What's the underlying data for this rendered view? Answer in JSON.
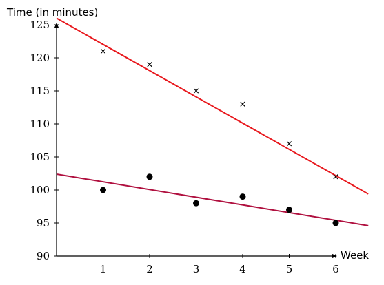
{
  "chart_data": {
    "type": "scatter",
    "ylabel": "Time (in minutes)",
    "xlabel": "Week",
    "xlim": [
      0,
      6
    ],
    "ylim": [
      90,
      125
    ],
    "x_ticks": [
      1,
      2,
      3,
      4,
      5,
      6
    ],
    "y_ticks": [
      90,
      95,
      100,
      105,
      110,
      115,
      120,
      125
    ],
    "grid": false,
    "series": [
      {
        "marker": "cross",
        "color": "#000000",
        "points": [
          {
            "x": 1,
            "y": 121
          },
          {
            "x": 2,
            "y": 119
          },
          {
            "x": 3,
            "y": 115
          },
          {
            "x": 4,
            "y": 113
          },
          {
            "x": 5,
            "y": 107
          },
          {
            "x": 6,
            "y": 102
          }
        ]
      },
      {
        "marker": "dot",
        "color": "#000000",
        "points": [
          {
            "x": 1,
            "y": 100
          },
          {
            "x": 2,
            "y": 102
          },
          {
            "x": 3,
            "y": 98
          },
          {
            "x": 4,
            "y": 99
          },
          {
            "x": 5,
            "y": 97
          },
          {
            "x": 6,
            "y": 95
          }
        ]
      }
    ],
    "trend_lines": [
      {
        "color": "#e8181d",
        "from": {
          "x": 0,
          "y": 126
        },
        "to": {
          "x": 6.7,
          "y": 99.4
        }
      },
      {
        "color": "#b0103f",
        "from": {
          "x": 0,
          "y": 102.4
        },
        "to": {
          "x": 6.7,
          "y": 94.6
        }
      }
    ]
  }
}
